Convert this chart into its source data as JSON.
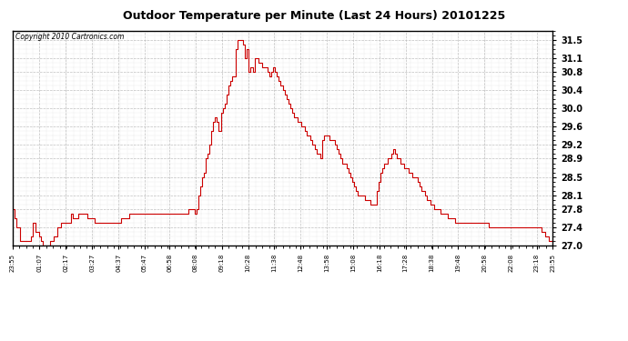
{
  "title": "Outdoor Temperature per Minute (Last 24 Hours) 20101225",
  "copyright": "Copyright 2010 Cartronics.com",
  "line_color": "#cc0000",
  "background_color": "#ffffff",
  "grid_color": "#b0b0b0",
  "ylim": [
    27.0,
    31.7
  ],
  "yticks": [
    27.0,
    27.4,
    27.8,
    28.1,
    28.5,
    28.9,
    29.2,
    29.6,
    30.0,
    30.4,
    30.8,
    31.1,
    31.5
  ],
  "xtick_labels": [
    "23:55",
    "01:07",
    "02:17",
    "03:27",
    "04:37",
    "05:47",
    "06:58",
    "08:08",
    "09:18",
    "10:28",
    "11:38",
    "12:48",
    "13:58",
    "15:08",
    "16:18",
    "17:28",
    "18:38",
    "19:48",
    "20:58",
    "22:08",
    "23:18",
    "23:55"
  ],
  "x_total_minutes": 1440,
  "temperature_data": [
    [
      0,
      27.8
    ],
    [
      5,
      27.6
    ],
    [
      10,
      27.4
    ],
    [
      20,
      27.1
    ],
    [
      30,
      27.1
    ],
    [
      40,
      27.1
    ],
    [
      50,
      27.2
    ],
    [
      55,
      27.5
    ],
    [
      60,
      27.3
    ],
    [
      70,
      27.2
    ],
    [
      75,
      27.1
    ],
    [
      80,
      27.0
    ],
    [
      90,
      27.0
    ],
    [
      100,
      27.1
    ],
    [
      110,
      27.2
    ],
    [
      120,
      27.4
    ],
    [
      130,
      27.5
    ],
    [
      140,
      27.5
    ],
    [
      150,
      27.5
    ],
    [
      155,
      27.7
    ],
    [
      160,
      27.6
    ],
    [
      170,
      27.6
    ],
    [
      175,
      27.7
    ],
    [
      180,
      27.7
    ],
    [
      190,
      27.7
    ],
    [
      200,
      27.6
    ],
    [
      210,
      27.6
    ],
    [
      220,
      27.5
    ],
    [
      230,
      27.5
    ],
    [
      240,
      27.5
    ],
    [
      250,
      27.5
    ],
    [
      260,
      27.5
    ],
    [
      270,
      27.5
    ],
    [
      280,
      27.5
    ],
    [
      290,
      27.6
    ],
    [
      300,
      27.6
    ],
    [
      310,
      27.7
    ],
    [
      320,
      27.7
    ],
    [
      330,
      27.7
    ],
    [
      340,
      27.7
    ],
    [
      350,
      27.7
    ],
    [
      360,
      27.7
    ],
    [
      370,
      27.7
    ],
    [
      380,
      27.7
    ],
    [
      390,
      27.7
    ],
    [
      400,
      27.7
    ],
    [
      410,
      27.7
    ],
    [
      420,
      27.7
    ],
    [
      430,
      27.7
    ],
    [
      440,
      27.7
    ],
    [
      450,
      27.7
    ],
    [
      460,
      27.7
    ],
    [
      470,
      27.8
    ],
    [
      478,
      27.8
    ],
    [
      485,
      27.7
    ],
    [
      490,
      27.8
    ],
    [
      495,
      28.1
    ],
    [
      500,
      28.3
    ],
    [
      505,
      28.5
    ],
    [
      510,
      28.6
    ],
    [
      515,
      28.9
    ],
    [
      520,
      29.0
    ],
    [
      525,
      29.2
    ],
    [
      530,
      29.5
    ],
    [
      535,
      29.7
    ],
    [
      540,
      29.8
    ],
    [
      545,
      29.7
    ],
    [
      550,
      29.5
    ],
    [
      555,
      29.9
    ],
    [
      560,
      30.0
    ],
    [
      565,
      30.1
    ],
    [
      570,
      30.3
    ],
    [
      575,
      30.5
    ],
    [
      580,
      30.6
    ],
    [
      585,
      30.7
    ],
    [
      590,
      30.7
    ],
    [
      595,
      31.3
    ],
    [
      600,
      31.5
    ],
    [
      605,
      31.5
    ],
    [
      610,
      31.5
    ],
    [
      615,
      31.4
    ],
    [
      620,
      31.1
    ],
    [
      625,
      31.3
    ],
    [
      628,
      31.1
    ],
    [
      630,
      30.8
    ],
    [
      635,
      30.9
    ],
    [
      640,
      30.8
    ],
    [
      645,
      31.1
    ],
    [
      650,
      31.1
    ],
    [
      655,
      31.0
    ],
    [
      660,
      31.0
    ],
    [
      665,
      30.9
    ],
    [
      670,
      30.9
    ],
    [
      675,
      30.9
    ],
    [
      680,
      30.8
    ],
    [
      685,
      30.7
    ],
    [
      690,
      30.8
    ],
    [
      695,
      30.9
    ],
    [
      700,
      30.8
    ],
    [
      705,
      30.7
    ],
    [
      710,
      30.6
    ],
    [
      715,
      30.5
    ],
    [
      720,
      30.4
    ],
    [
      725,
      30.3
    ],
    [
      730,
      30.2
    ],
    [
      735,
      30.1
    ],
    [
      740,
      30.0
    ],
    [
      745,
      29.9
    ],
    [
      750,
      29.8
    ],
    [
      755,
      29.8
    ],
    [
      760,
      29.7
    ],
    [
      765,
      29.7
    ],
    [
      770,
      29.6
    ],
    [
      775,
      29.6
    ],
    [
      780,
      29.5
    ],
    [
      785,
      29.4
    ],
    [
      790,
      29.4
    ],
    [
      795,
      29.3
    ],
    [
      800,
      29.2
    ],
    [
      805,
      29.1
    ],
    [
      810,
      29.0
    ],
    [
      815,
      29.0
    ],
    [
      820,
      28.9
    ],
    [
      825,
      29.3
    ],
    [
      830,
      29.4
    ],
    [
      835,
      29.4
    ],
    [
      840,
      29.4
    ],
    [
      845,
      29.3
    ],
    [
      850,
      29.3
    ],
    [
      855,
      29.3
    ],
    [
      860,
      29.2
    ],
    [
      865,
      29.1
    ],
    [
      870,
      29.0
    ],
    [
      875,
      28.9
    ],
    [
      880,
      28.8
    ],
    [
      885,
      28.8
    ],
    [
      890,
      28.7
    ],
    [
      895,
      28.6
    ],
    [
      900,
      28.5
    ],
    [
      905,
      28.4
    ],
    [
      910,
      28.3
    ],
    [
      915,
      28.2
    ],
    [
      920,
      28.1
    ],
    [
      925,
      28.1
    ],
    [
      930,
      28.1
    ],
    [
      935,
      28.1
    ],
    [
      940,
      28.0
    ],
    [
      945,
      28.0
    ],
    [
      950,
      28.0
    ],
    [
      955,
      27.9
    ],
    [
      960,
      27.9
    ],
    [
      965,
      27.9
    ],
    [
      970,
      28.2
    ],
    [
      975,
      28.4
    ],
    [
      980,
      28.6
    ],
    [
      985,
      28.7
    ],
    [
      990,
      28.8
    ],
    [
      995,
      28.8
    ],
    [
      1000,
      28.9
    ],
    [
      1005,
      28.9
    ],
    [
      1010,
      29.0
    ],
    [
      1015,
      29.1
    ],
    [
      1020,
      29.0
    ],
    [
      1025,
      28.9
    ],
    [
      1030,
      28.9
    ],
    [
      1035,
      28.8
    ],
    [
      1040,
      28.8
    ],
    [
      1045,
      28.7
    ],
    [
      1050,
      28.7
    ],
    [
      1055,
      28.6
    ],
    [
      1060,
      28.6
    ],
    [
      1065,
      28.5
    ],
    [
      1070,
      28.5
    ],
    [
      1075,
      28.5
    ],
    [
      1080,
      28.4
    ],
    [
      1085,
      28.3
    ],
    [
      1090,
      28.2
    ],
    [
      1095,
      28.2
    ],
    [
      1100,
      28.1
    ],
    [
      1105,
      28.0
    ],
    [
      1110,
      28.0
    ],
    [
      1115,
      27.9
    ],
    [
      1120,
      27.9
    ],
    [
      1125,
      27.8
    ],
    [
      1130,
      27.8
    ],
    [
      1135,
      27.8
    ],
    [
      1140,
      27.7
    ],
    [
      1145,
      27.7
    ],
    [
      1150,
      27.7
    ],
    [
      1155,
      27.7
    ],
    [
      1160,
      27.6
    ],
    [
      1165,
      27.6
    ],
    [
      1170,
      27.6
    ],
    [
      1175,
      27.6
    ],
    [
      1180,
      27.5
    ],
    [
      1185,
      27.5
    ],
    [
      1190,
      27.5
    ],
    [
      1200,
      27.5
    ],
    [
      1210,
      27.5
    ],
    [
      1220,
      27.5
    ],
    [
      1230,
      27.5
    ],
    [
      1240,
      27.5
    ],
    [
      1250,
      27.5
    ],
    [
      1260,
      27.5
    ],
    [
      1270,
      27.4
    ],
    [
      1280,
      27.4
    ],
    [
      1290,
      27.4
    ],
    [
      1300,
      27.4
    ],
    [
      1310,
      27.4
    ],
    [
      1320,
      27.4
    ],
    [
      1330,
      27.4
    ],
    [
      1340,
      27.4
    ],
    [
      1350,
      27.4
    ],
    [
      1360,
      27.4
    ],
    [
      1370,
      27.4
    ],
    [
      1380,
      27.4
    ],
    [
      1390,
      27.4
    ],
    [
      1400,
      27.4
    ],
    [
      1410,
      27.3
    ],
    [
      1420,
      27.2
    ],
    [
      1430,
      27.1
    ],
    [
      1440,
      27.1
    ]
  ],
  "xtick_positions": [
    0,
    72,
    142,
    212,
    282,
    352,
    418,
    488,
    558,
    628,
    698,
    768,
    838,
    908,
    978,
    1048,
    1118,
    1188,
    1258,
    1328,
    1398,
    1440
  ],
  "minor_xtick_interval": 18,
  "minor_ytick_interval": 0.1
}
